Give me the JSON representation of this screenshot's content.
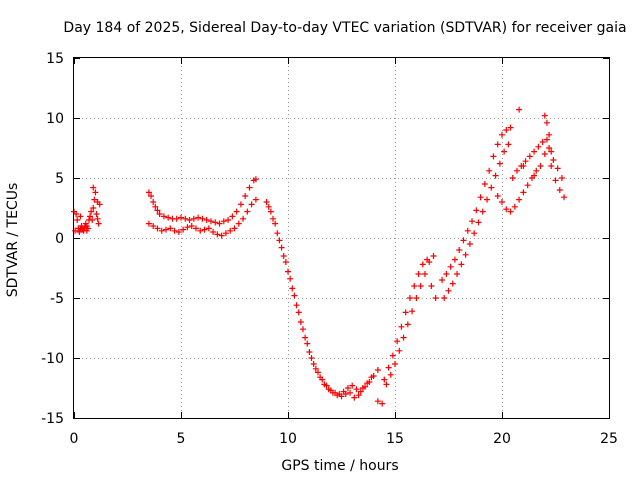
{
  "chart_data": {
    "type": "scatter",
    "title": "Day 184 of 2025, Sidereal Day-to-day VTEC variation (SDTVAR) for receiver gaia",
    "xlabel": "GPS time / hours",
    "ylabel": "SDTVAR / TECUs",
    "xlim": [
      0,
      25
    ],
    "ylim": [
      -15,
      15
    ],
    "xticks": [
      0,
      5,
      10,
      15,
      20,
      25
    ],
    "yticks": [
      -15,
      -10,
      -5,
      0,
      5,
      10,
      15
    ],
    "xtick_labels": [
      "0",
      "5",
      "10",
      "15",
      "20",
      "25"
    ],
    "ytick_labels": [
      "-15",
      "-10",
      "-5",
      "0",
      "5",
      "10",
      "15"
    ],
    "grid": true,
    "marker": "+",
    "color": "#ff0000",
    "series": [
      {
        "name": "SDTVAR",
        "x": [
          0.0,
          0.1,
          0.15,
          0.2,
          0.25,
          0.3,
          0.35,
          0.4,
          0.45,
          0.5,
          0.55,
          0.6,
          0.65,
          0.7,
          0.75,
          0.8,
          0.85,
          0.9,
          0.95,
          1.0,
          1.05,
          1.1,
          1.15,
          1.2,
          0.05,
          0.3,
          0.6,
          0.9,
          1.1,
          3.5,
          3.6,
          3.7,
          3.8,
          3.9,
          4.0,
          4.2,
          4.4,
          4.6,
          4.8,
          5.0,
          5.2,
          5.4,
          5.6,
          5.8,
          6.0,
          6.2,
          6.4,
          6.6,
          6.8,
          7.0,
          7.2,
          7.4,
          7.6,
          7.8,
          8.0,
          8.2,
          8.4,
          8.5,
          3.5,
          3.7,
          3.9,
          4.1,
          4.3,
          4.5,
          4.7,
          4.9,
          5.1,
          5.3,
          5.5,
          5.7,
          5.9,
          6.1,
          6.3,
          6.5,
          6.7,
          6.9,
          7.1,
          7.3,
          7.5,
          7.7,
          7.9,
          8.1,
          8.3,
          8.5,
          9.0,
          9.2,
          9.4,
          9.6,
          9.8,
          10.0,
          10.2,
          10.4,
          10.6,
          10.8,
          11.0,
          11.2,
          11.4,
          11.6,
          11.8,
          12.0,
          12.2,
          12.4,
          12.6,
          12.8,
          13.0,
          13.2,
          13.4,
          13.6,
          13.8,
          14.0,
          14.2,
          9.1,
          9.3,
          9.5,
          9.7,
          9.9,
          10.1,
          10.3,
          10.5,
          10.7,
          10.9,
          11.1,
          11.3,
          11.5,
          11.7,
          11.9,
          12.1,
          12.3,
          12.5,
          12.7,
          12.9,
          13.1,
          13.3,
          13.5,
          13.7,
          13.9,
          14.5,
          14.7,
          14.9,
          15.1,
          15.3,
          15.5,
          15.7,
          15.9,
          16.1,
          16.3,
          16.5,
          16.7,
          16.9,
          14.6,
          14.8,
          15.0,
          15.2,
          15.4,
          15.6,
          15.8,
          16.0,
          16.2,
          16.4,
          16.6,
          16.8,
          17.2,
          17.4,
          17.6,
          17.8,
          18.0,
          18.2,
          18.4,
          18.6,
          18.8,
          19.0,
          19.2,
          19.4,
          19.6,
          19.8,
          20.0,
          20.2,
          20.4,
          17.3,
          17.5,
          17.7,
          17.9,
          18.1,
          18.3,
          18.5,
          18.7,
          18.9,
          19.1,
          19.3,
          19.5,
          19.7,
          19.9,
          20.1,
          20.3,
          19.8,
          20.0,
          20.2,
          20.4,
          20.6,
          20.8,
          21.0,
          21.2,
          21.4,
          21.6,
          21.8,
          22.0,
          22.2,
          22.4,
          22.6,
          22.8,
          20.5,
          20.7,
          20.9,
          21.1,
          21.3,
          21.5,
          21.7,
          21.9,
          22.1,
          22.3,
          22.5,
          22.7,
          22.9,
          20.8,
          22.0,
          22.1,
          22.2,
          22.3,
          21.5,
          21.0,
          14.2,
          14.4
        ],
        "y": [
          2.2,
          2.0,
          1.5,
          0.8,
          0.5,
          0.8,
          1.0,
          0.7,
          0.6,
          0.9,
          1.2,
          1.0,
          0.8,
          1.5,
          1.8,
          2.2,
          1.5,
          2.5,
          3.2,
          3.8,
          2.0,
          1.6,
          1.2,
          2.8,
          0.6,
          1.8,
          0.6,
          4.2,
          3.0,
          3.8,
          3.5,
          3.0,
          2.6,
          2.3,
          2.0,
          1.8,
          1.7,
          1.6,
          1.6,
          1.7,
          1.6,
          1.5,
          1.6,
          1.7,
          1.6,
          1.5,
          1.4,
          1.3,
          1.2,
          1.4,
          1.5,
          1.8,
          2.2,
          2.8,
          3.5,
          4.2,
          4.8,
          4.9,
          1.2,
          1.0,
          0.8,
          0.6,
          0.7,
          0.8,
          0.6,
          0.5,
          0.7,
          0.9,
          1.0,
          0.8,
          0.6,
          0.7,
          0.8,
          0.5,
          0.3,
          0.2,
          0.4,
          0.6,
          0.8,
          1.2,
          1.6,
          2.2,
          2.8,
          3.2,
          3.0,
          2.2,
          1.2,
          -0.2,
          -1.5,
          -2.8,
          -4.2,
          -5.6,
          -7.0,
          -8.3,
          -9.5,
          -10.5,
          -11.2,
          -11.8,
          -12.3,
          -12.7,
          -12.9,
          -13.0,
          -12.8,
          -12.5,
          -12.3,
          -12.6,
          -12.8,
          -12.4,
          -12.0,
          -11.5,
          -11.0,
          2.6,
          1.6,
          0.4,
          -0.8,
          -2.0,
          -3.4,
          -4.8,
          -6.2,
          -7.6,
          -8.8,
          -10.0,
          -10.9,
          -11.6,
          -12.2,
          -12.6,
          -12.9,
          -13.1,
          -13.2,
          -13.0,
          -12.9,
          -13.3,
          -13.1,
          -12.5,
          -12.1,
          -11.6,
          -11.8,
          -10.8,
          -9.8,
          -8.6,
          -7.4,
          -6.2,
          -5.0,
          -4.0,
          -3.0,
          -2.2,
          -1.8,
          -4.0,
          -5.0,
          -12.2,
          -11.4,
          -10.5,
          -9.4,
          -8.3,
          -7.2,
          -6.1,
          -5.0,
          -4.0,
          -3.0,
          -2.0,
          -1.5,
          -3.5,
          -3.0,
          -2.4,
          -1.8,
          -1.0,
          -0.2,
          0.6,
          1.4,
          2.3,
          3.4,
          4.5,
          5.6,
          6.8,
          7.8,
          8.6,
          9.0,
          9.2,
          -5.0,
          -4.4,
          -3.8,
          -3.0,
          -2.2,
          -1.4,
          -0.5,
          0.4,
          1.3,
          2.2,
          3.2,
          4.2,
          5.2,
          6.2,
          7.2,
          7.8,
          3.5,
          3.0,
          2.4,
          2.2,
          2.6,
          3.2,
          3.8,
          4.4,
          5.0,
          5.6,
          6.0,
          7.0,
          7.5,
          6.5,
          5.8,
          5.0,
          5.0,
          5.6,
          6.0,
          6.4,
          6.8,
          7.2,
          7.6,
          8.0,
          8.2,
          6.0,
          4.8,
          4.0,
          3.4,
          10.7,
          10.2,
          9.6,
          8.6,
          7.2,
          5.2,
          6.0,
          -13.6,
          -13.8
        ]
      }
    ]
  }
}
